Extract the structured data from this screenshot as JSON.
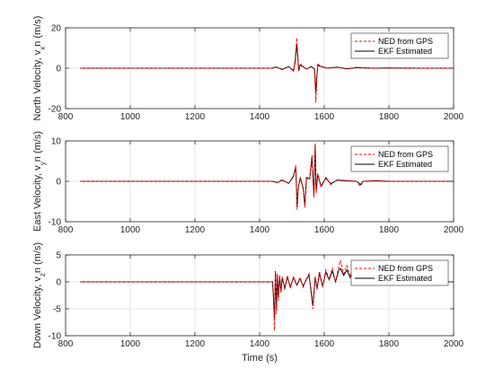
{
  "chart_data": [
    {
      "type": "line",
      "ylabel": "North Velocity, v_xn (m/s)",
      "xlabel": "",
      "xlim": [
        800,
        2000
      ],
      "ylim": [
        -20,
        20
      ],
      "xticks": [
        800,
        1000,
        1200,
        1400,
        1600,
        1800,
        2000
      ],
      "yticks": [
        -20,
        0,
        20
      ],
      "grid": true,
      "legend_position": "top-right",
      "series": [
        {
          "name": "NED from GPS",
          "color": "#ff0000",
          "style": "dashed",
          "x": [
            845,
            1440,
            1450,
            1470,
            1490,
            1505,
            1510,
            1515,
            1518,
            1521,
            1525,
            1530,
            1545,
            1560,
            1570,
            1574,
            1577,
            1580,
            1590,
            1610,
            1640,
            1670,
            1700,
            1750,
            1800,
            1900,
            2000
          ],
          "y": [
            0,
            0,
            0.8,
            -0.8,
            1.0,
            -1.5,
            4,
            15,
            7,
            -1.5,
            2,
            1.5,
            -0.5,
            1,
            -0.5,
            -17,
            -5,
            2,
            1,
            0,
            0.6,
            -0.4,
            0.4,
            0,
            0.1,
            0,
            0
          ]
        },
        {
          "name": "EKF Estimated",
          "color": "#000000",
          "style": "solid",
          "x": [
            845,
            1440,
            1450,
            1470,
            1490,
            1505,
            1510,
            1515,
            1518,
            1521,
            1525,
            1530,
            1545,
            1560,
            1570,
            1574,
            1577,
            1580,
            1590,
            1610,
            1640,
            1670,
            1700,
            1750,
            1800,
            1900,
            2000
          ],
          "y": [
            0,
            0,
            0.6,
            -0.6,
            0.8,
            -1.2,
            3,
            12,
            6,
            -1.2,
            1.5,
            1.2,
            -0.4,
            0.8,
            -0.4,
            -12,
            -4,
            1.5,
            0.8,
            0,
            0.5,
            -0.3,
            0.3,
            0,
            0.1,
            0,
            0
          ]
        }
      ]
    },
    {
      "type": "line",
      "ylabel": "East Velocity, v_yn (m/s)",
      "xlabel": "",
      "xlim": [
        800,
        2000
      ],
      "ylim": [
        -10,
        10
      ],
      "xticks": [
        800,
        1000,
        1200,
        1400,
        1600,
        1800,
        2000
      ],
      "yticks": [
        -10,
        0,
        10
      ],
      "grid": true,
      "legend_position": "top-right",
      "series": [
        {
          "name": "NED from GPS",
          "color": "#ff0000",
          "style": "dashed",
          "x": [
            845,
            1440,
            1455,
            1470,
            1490,
            1505,
            1512,
            1516,
            1520,
            1526,
            1535,
            1540,
            1545,
            1555,
            1562,
            1568,
            1572,
            1575,
            1580,
            1590,
            1605,
            1620,
            1640,
            1670,
            1700,
            1712,
            1720,
            1760,
            1800,
            1900,
            2000
          ],
          "y": [
            0,
            0,
            -0.4,
            0.4,
            -0.6,
            1.5,
            4,
            -7,
            -1.5,
            1,
            -2,
            -6.5,
            1,
            0.8,
            6.5,
            -4,
            9.5,
            -3,
            2,
            -1.5,
            1,
            -0.8,
            0.4,
            0.2,
            0,
            -1.2,
            0,
            0.2,
            0,
            0,
            0
          ]
        },
        {
          "name": "EKF Estimated",
          "color": "#000000",
          "style": "solid",
          "x": [
            845,
            1440,
            1455,
            1470,
            1490,
            1505,
            1512,
            1516,
            1520,
            1526,
            1535,
            1540,
            1545,
            1555,
            1562,
            1568,
            1572,
            1575,
            1580,
            1590,
            1605,
            1620,
            1640,
            1670,
            1700,
            1712,
            1720,
            1760,
            1800,
            1900,
            2000
          ],
          "y": [
            0,
            0,
            -0.3,
            0.3,
            -0.5,
            1.2,
            3.5,
            -6.5,
            -1.2,
            0.8,
            -1.8,
            -6,
            0.8,
            0.6,
            6,
            -3.5,
            9,
            -2.5,
            1.6,
            -1.2,
            0.8,
            -0.6,
            0.3,
            0.1,
            0,
            -0.8,
            0,
            0.1,
            0,
            0,
            0
          ]
        }
      ]
    },
    {
      "type": "line",
      "ylabel": "Down Velocity, v_zn (m/s)",
      "xlabel": "Time (s)",
      "xlim": [
        800,
        2000
      ],
      "ylim": [
        -10,
        5
      ],
      "xticks": [
        800,
        1000,
        1200,
        1400,
        1600,
        1800,
        2000
      ],
      "yticks": [
        -10,
        -5,
        0,
        5
      ],
      "grid": true,
      "legend_position": "top-right",
      "series": [
        {
          "name": "NED from GPS",
          "color": "#ff0000",
          "style": "dashed",
          "x": [
            845,
            1440,
            1443,
            1446,
            1449,
            1452,
            1455,
            1458,
            1462,
            1466,
            1470,
            1478,
            1486,
            1495,
            1505,
            1515,
            1525,
            1535,
            1545,
            1553,
            1560,
            1565,
            1572,
            1578,
            1585,
            1595,
            1605,
            1615,
            1625,
            1635,
            1645,
            1650,
            1660,
            1670,
            1680,
            1690,
            1695,
            1700,
            1750,
            1800,
            1900,
            2000
          ],
          "y": [
            0,
            0,
            -3,
            -9,
            2,
            -6,
            1.5,
            -3.5,
            1.2,
            -2,
            1,
            -1.5,
            1.2,
            -1.2,
            1,
            -0.8,
            0.8,
            -1,
            0.6,
            1.5,
            -2.5,
            -5,
            1,
            -1.5,
            2,
            -1,
            2.2,
            0.5,
            2.5,
            0,
            2.8,
            4,
            1.5,
            3,
            1,
            2.8,
            0.5,
            0,
            0.1,
            0,
            0,
            0
          ]
        },
        {
          "name": "EKF Estimated",
          "color": "#000000",
          "style": "solid",
          "x": [
            845,
            1440,
            1443,
            1446,
            1449,
            1452,
            1455,
            1458,
            1462,
            1466,
            1470,
            1478,
            1486,
            1495,
            1505,
            1515,
            1525,
            1535,
            1545,
            1553,
            1560,
            1565,
            1572,
            1578,
            1585,
            1595,
            1605,
            1615,
            1625,
            1635,
            1645,
            1650,
            1660,
            1670,
            1680,
            1690,
            1695,
            1700,
            1750,
            1800,
            1900,
            2000
          ],
          "y": [
            0,
            0,
            -3,
            -7,
            2,
            -5,
            1.2,
            -3,
            1,
            -1.8,
            0.8,
            -1.2,
            1,
            -1,
            0.8,
            -0.6,
            0.6,
            -0.8,
            0.5,
            1.2,
            -2,
            -4.5,
            0.8,
            -1.2,
            1.6,
            -0.8,
            1.8,
            0.4,
            2,
            0,
            2.2,
            2.5,
            1.2,
            2.2,
            0.8,
            2.5,
            0.3,
            0,
            0,
            0,
            0,
            0
          ]
        }
      ]
    }
  ]
}
